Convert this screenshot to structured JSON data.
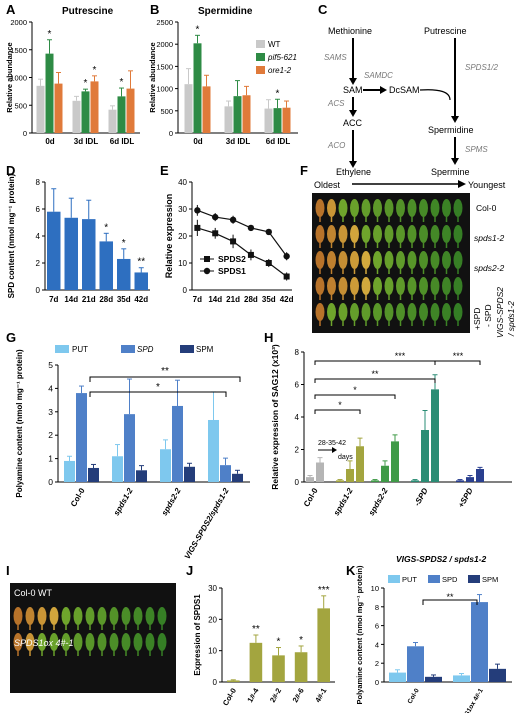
{
  "panel_letters": [
    "A",
    "B",
    "C",
    "D",
    "E",
    "F",
    "G",
    "H",
    "I",
    "J",
    "K"
  ],
  "colors": {
    "wt": "#c9c9c9",
    "pif": "#2e8b45",
    "ore": "#e07a3a",
    "blue": "#2e6fc0",
    "put": "#7ec8ee",
    "spd": "#4f80c8",
    "spm": "#243d7a",
    "sag_gray": "#b5b5b5",
    "sag_olive": "#a3a53f",
    "sag_green": "#3f9a47",
    "sag_teal": "#2a8c74",
    "sag_navy": "#2a3f8f"
  },
  "legend_B": [
    "WT",
    "pif5-621",
    "ore1-2"
  ],
  "legend_G": [
    "PUT",
    "SPD",
    "SPM"
  ],
  "legend_K": [
    "PUT",
    "SPD",
    "SPM"
  ],
  "pathway": {
    "methionine": "Methionine",
    "putrescine": "Putrescine",
    "sams": "SAMS",
    "samdc": "SAMDC",
    "sam": "SAM",
    "dcsam": "DcSAM",
    "acs": "ACS",
    "acc": "ACC",
    "aco": "ACO",
    "ethylene": "Ethylene",
    "spds": "SPDS1/2",
    "spermidine": "Spermidine",
    "spms": "SPMS",
    "spermine": "Spermine"
  },
  "panel_F": {
    "oldest": "Oldest",
    "youngest": "Youngest",
    "rows": [
      "Col-0",
      "spds1-2",
      "spds2-2"
    ],
    "vigs": "VIGS-SPDS2",
    "vigs2": "/ spds1-2",
    "plus": "+SPD",
    "minus": "- SPD"
  },
  "panel_I": {
    "rows": [
      "Col-0 WT",
      "SPDS1ox 4#-1"
    ]
  },
  "panel_H_days": "28-35-42",
  "panel_H_days2": "days",
  "chart_data": [
    {
      "panel": "A",
      "type": "bar",
      "title": "Putrescine",
      "ylabel": "Relative abundance",
      "ylim": [
        0,
        2000
      ],
      "yticks": [
        0,
        500,
        1000,
        1500,
        2000
      ],
      "categories": [
        "0d",
        "3d IDL",
        "6d IDL"
      ],
      "series": [
        {
          "name": "WT",
          "values": [
            850,
            580,
            420
          ],
          "err": [
            120,
            80,
            70
          ]
        },
        {
          "name": "pif5-621",
          "values": [
            1430,
            750,
            660
          ],
          "err": [
            250,
            40,
            150
          ]
        },
        {
          "name": "ore1-2",
          "values": [
            890,
            930,
            800
          ],
          "err": [
            200,
            100,
            320
          ]
        }
      ],
      "stars": [
        [
          "",
          "*",
          ""
        ],
        [
          "",
          "*",
          "*"
        ],
        [
          "",
          "*",
          ""
        ]
      ]
    },
    {
      "panel": "B",
      "type": "bar",
      "title": "Spermidine",
      "ylabel": "Relative abundance",
      "ylim": [
        0,
        2500
      ],
      "yticks": [
        0,
        500,
        1000,
        1500,
        2000,
        2500
      ],
      "categories": [
        "0d",
        "3d IDL",
        "6d IDL"
      ],
      "series": [
        {
          "name": "WT",
          "values": [
            1100,
            600,
            550
          ],
          "err": [
            350,
            120,
            200
          ]
        },
        {
          "name": "pif5-621",
          "values": [
            2020,
            830,
            560
          ],
          "err": [
            180,
            350,
            200
          ]
        },
        {
          "name": "ore1-2",
          "values": [
            1050,
            850,
            570
          ],
          "err": [
            250,
            200,
            150
          ]
        }
      ],
      "stars": [
        [
          "",
          "*",
          ""
        ],
        [
          "",
          "",
          ""
        ],
        [
          "",
          "*",
          ""
        ]
      ]
    },
    {
      "panel": "D",
      "type": "bar",
      "ylabel": "SPD content (nmol mg⁻¹ protein)",
      "ylim": [
        0,
        8
      ],
      "yticks": [
        0,
        2,
        4,
        6,
        8
      ],
      "categories": [
        "7d",
        "14d",
        "21d",
        "28d",
        "35d",
        "42d"
      ],
      "values": [
        5.8,
        5.35,
        5.25,
        3.6,
        2.3,
        1.3
      ],
      "err": [
        1.7,
        1.45,
        1.4,
        0.6,
        0.75,
        0.35
      ],
      "stars": [
        "",
        "",
        "",
        "*",
        "*",
        "**"
      ]
    },
    {
      "panel": "E",
      "type": "line",
      "ylabel": "Relative expression",
      "ylim": [
        0,
        40
      ],
      "yticks": [
        0,
        10,
        20,
        30,
        40
      ],
      "categories": [
        "7d",
        "14d",
        "21d",
        "28d",
        "35d",
        "42d"
      ],
      "series": [
        {
          "name": "SPDS2",
          "values": [
            23,
            21,
            18,
            13,
            10,
            5
          ],
          "err": [
            3,
            2,
            2.5,
            2,
            1.5,
            1.5
          ]
        },
        {
          "name": "SPDS1",
          "values": [
            29.5,
            27,
            26,
            23,
            21.5,
            12.5
          ],
          "err": [
            2,
            1.5,
            1.5,
            1,
            1,
            1.5
          ]
        }
      ]
    },
    {
      "panel": "G",
      "type": "bar",
      "ylabel": "Polyamine content (nmol mg⁻¹ protein)",
      "ylim": [
        0,
        5
      ],
      "yticks": [
        0,
        1,
        2,
        3,
        4,
        5
      ],
      "categories": [
        "Col-0",
        "spds1-2",
        "spds2-2",
        "VIGS-SPDS2/spds1-2"
      ],
      "series": [
        {
          "name": "PUT",
          "values": [
            0.9,
            1.1,
            1.4,
            2.65
          ],
          "err": [
            0.2,
            0.5,
            0.4,
            1.2
          ]
        },
        {
          "name": "SPD",
          "values": [
            3.8,
            2.9,
            3.25,
            0.72
          ],
          "err": [
            0.3,
            1.5,
            1.1,
            0.3
          ]
        },
        {
          "name": "SPM",
          "values": [
            0.6,
            0.5,
            0.65,
            0.35
          ],
          "err": [
            0.15,
            0.2,
            0.15,
            0.15
          ]
        }
      ],
      "brackets": [
        {
          "label": "**"
        },
        {
          "label": "*"
        }
      ]
    },
    {
      "panel": "H",
      "type": "bar",
      "ylabel": "Relative expression of SAG12 (x10³)",
      "ylim": [
        0,
        8
      ],
      "yticks": [
        0,
        2,
        4,
        6,
        8
      ],
      "groups": [
        "Col-0",
        "spds1-2",
        "spds2-2",
        "-SPD",
        "+SPD"
      ],
      "group_label": "VIGS-SPDS2 / spds1-2",
      "values": [
        0.3,
        1.2,
        0.1,
        0.8,
        2.2,
        0.1,
        1.0,
        2.5,
        0.1,
        3.2,
        5.7,
        0.1,
        0.3,
        0.8
      ],
      "err": [
        0.1,
        0.3,
        0.05,
        0.5,
        0.5,
        0.05,
        0.3,
        0.4,
        0.05,
        1.2,
        0.9,
        0.05,
        0.1,
        0.1
      ],
      "brackets": [
        {
          "label": "***"
        },
        {
          "label": "**"
        },
        {
          "label": "*"
        },
        {
          "label": "*"
        },
        {
          "label": "***"
        }
      ]
    },
    {
      "panel": "J",
      "type": "bar",
      "ylabel": "Expression of SPDS1",
      "ylim": [
        0,
        30
      ],
      "yticks": [
        0,
        10,
        20,
        30
      ],
      "categories": [
        "Col-0",
        "1#-4",
        "2#-2",
        "2#-6",
        "4#-1"
      ],
      "values": [
        0.5,
        12.5,
        8.5,
        9.5,
        23.5
      ],
      "err": [
        0.2,
        2.5,
        2.5,
        2,
        4
      ],
      "stars": [
        "",
        "**",
        "*",
        "*",
        "***"
      ]
    },
    {
      "panel": "K",
      "type": "bar",
      "ylabel": "Polyamine content (nmol mg⁻¹ protein)",
      "ylim": [
        0,
        10
      ],
      "yticks": [
        0,
        2,
        4,
        6,
        8,
        10
      ],
      "categories": [
        "Col-0",
        "SPDS1ox 4#-1"
      ],
      "series": [
        {
          "name": "PUT",
          "values": [
            1.0,
            0.7
          ],
          "err": [
            0.3,
            0.2
          ]
        },
        {
          "name": "SPD",
          "values": [
            3.8,
            8.5
          ],
          "err": [
            0.4,
            0.8
          ]
        },
        {
          "name": "SPM",
          "values": [
            0.55,
            1.4
          ],
          "err": [
            0.2,
            0.5
          ]
        }
      ],
      "brackets": [
        {
          "label": "**"
        }
      ]
    }
  ]
}
